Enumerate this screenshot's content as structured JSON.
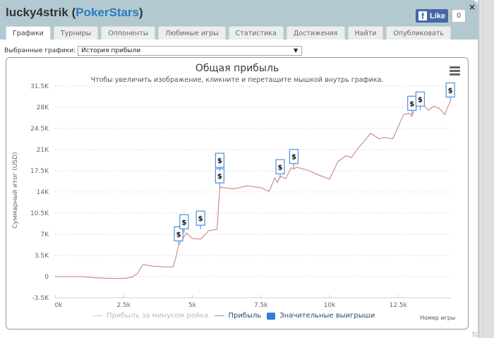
{
  "window": {
    "title_user": "lucky4strik",
    "title_site": "PokerStars",
    "close_icon": "×",
    "facebook": {
      "like_label": "Like",
      "icon": "f",
      "count": "0"
    }
  },
  "tabs": [
    {
      "label": "Графики",
      "active": true
    },
    {
      "label": "Турниры"
    },
    {
      "label": "Оппоненты"
    },
    {
      "label": "Любимые игры"
    },
    {
      "label": "Статистика"
    },
    {
      "label": "Достижения"
    },
    {
      "label": "Найти"
    },
    {
      "label": "Опубликовать"
    }
  ],
  "selector": {
    "label": "Выбранные графики:",
    "value": "История прибыли",
    "arrow": "▼"
  },
  "chart": {
    "title": "Общая прибыль",
    "subtitle": "Чтобы увеличить изображение, кликните и перетащите мышкой внутрь графика.",
    "menu_icon": "hamburger",
    "x_axis_title": "Номер игры",
    "y_axis_title": "Суммарный итог (USD)",
    "legend": [
      {
        "label": "Прибыль за минусом рейка",
        "color": "#cccccc",
        "type": "line"
      },
      {
        "label": "Прибыль",
        "color": "#c87878",
        "type": "line"
      },
      {
        "label": "Значительные выигрыши",
        "color": "#2f7ed8",
        "type": "square"
      }
    ],
    "marker_label": "$"
  },
  "chart_data": {
    "type": "line",
    "title": "Общая прибыль",
    "subtitle": "Чтобы увеличить изображение, кликните и перетащите мышкой внутрь графика.",
    "xlabel": "Номер игры",
    "ylabel": "Суммарный итог (USD)",
    "x_ticks": [
      "0k",
      "2.5k",
      "5k",
      "7.5k",
      "10k",
      "12.5k"
    ],
    "y_ticks": [
      "-3.5K",
      "0",
      "3.5K",
      "7K",
      "10.5K",
      "14K",
      "17.5K",
      "21K",
      "24.5K",
      "28K",
      "31.5K"
    ],
    "xlim": [
      0,
      14500
    ],
    "ylim": [
      -3500,
      31500
    ],
    "grid": true,
    "legend_position": "bottom",
    "series": [
      {
        "name": "Прибыль",
        "color": "#c87878",
        "x": [
          0,
          500,
          1000,
          1500,
          2000,
          2500,
          2800,
          3000,
          3200,
          3600,
          4000,
          4300,
          4400,
          4500,
          4600,
          4800,
          5000,
          5300,
          5600,
          5900,
          6000,
          6500,
          7000,
          7500,
          7800,
          8000,
          8100,
          8200,
          8400,
          8600,
          8700,
          8800,
          9200,
          9600,
          10000,
          10300,
          10600,
          10800,
          11000,
          11500,
          11800,
          12000,
          12300,
          12700,
          12900,
          13000,
          13200,
          13400,
          13600,
          13800,
          14000,
          14200,
          14300,
          14400
        ],
        "y": [
          0,
          0,
          0,
          -200,
          -300,
          -300,
          -100,
          500,
          2000,
          1700,
          1600,
          1600,
          3200,
          5200,
          6000,
          7200,
          6300,
          6200,
          7600,
          7800,
          14800,
          14500,
          15000,
          14700,
          14100,
          16300,
          15600,
          16600,
          16200,
          18000,
          17800,
          18100,
          17600,
          16800,
          16100,
          19000,
          20000,
          19700,
          21000,
          23700,
          22800,
          23000,
          22800,
          26800,
          27000,
          26500,
          29000,
          28500,
          27500,
          28200,
          27800,
          26800,
          28000,
          29000
        ]
      },
      {
        "name": "Значительные выигрыши",
        "type": "flags",
        "x": [
          4500,
          4700,
          5300,
          6000,
          6000,
          8200,
          8700,
          13000,
          13300,
          14400
        ],
        "y": [
          5200,
          7200,
          7800,
          14800,
          14800,
          16300,
          18000,
          26800,
          27500,
          29000
        ]
      }
    ]
  }
}
